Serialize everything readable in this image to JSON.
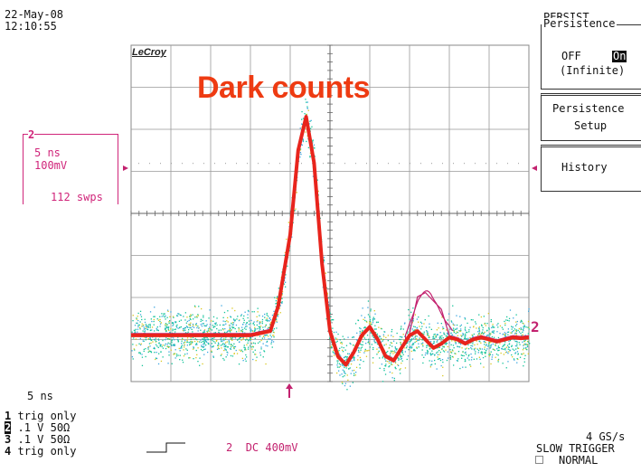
{
  "header": {
    "date": "22-May-08",
    "time": "12:10:55"
  },
  "menu": {
    "title": "PERSIST",
    "persistence": {
      "label": "Persistence",
      "off": "OFF",
      "on": "On",
      "mode": "(Infinite)",
      "selected": "On"
    },
    "setup": {
      "line1": "Persistence",
      "line2": "Setup"
    },
    "history": {
      "label": "History"
    }
  },
  "screen": {
    "overlay_title": "Dark counts",
    "brand": "LeCroy"
  },
  "channel2_box": {
    "num": "2",
    "tdiv": "5 ns",
    "vdiv": "100mV",
    "sweeps": "112 swps"
  },
  "footer": {
    "timebase": "5 ns",
    "channels": [
      {
        "num": "1",
        "text": "trig only"
      },
      {
        "num": "2",
        "text": ".1   V  50Ω"
      },
      {
        "num": "3",
        "text": ".1   V  50Ω"
      },
      {
        "num": "4",
        "text": "trig only"
      }
    ],
    "trigger_channel": "2",
    "trigger_coupling": "DC 400mV",
    "sample_rate": "4 GS/s",
    "trigger_mode": "SLOW TRIGGER",
    "trigger_state": "NORMAL"
  },
  "right_marker": "2",
  "colors": {
    "trace": "#e8241c",
    "persistence": "#12c49a",
    "channel2": "#c3226f",
    "title": "#ee3b12"
  },
  "chart_data": {
    "type": "line",
    "x_divisions": 10,
    "y_divisions": 8,
    "series": [
      {
        "x": [
          0,
          0.5,
          1,
          1.5,
          2,
          2.5,
          3,
          3.5,
          3.7,
          4,
          4.2,
          4.4,
          4.6,
          4.8,
          5,
          5.2,
          5.4,
          5.6,
          5.8,
          6,
          6.2,
          6.4,
          6.6,
          6.8,
          7,
          7.2,
          7.4,
          7.6,
          7.8,
          8,
          8.2,
          8.4,
          8.6,
          8.8,
          9,
          9.2,
          9.4,
          9.6,
          9.8,
          10
        ],
        "y": [
          -2.9,
          -2.9,
          -2.9,
          -2.9,
          -2.9,
          -2.9,
          -2.9,
          -2.8,
          -2.2,
          -0.5,
          1.5,
          2.3,
          1.2,
          -1.2,
          -2.8,
          -3.4,
          -3.6,
          -3.3,
          -2.9,
          -2.7,
          -3.0,
          -3.4,
          -3.5,
          -3.2,
          -2.9,
          -2.8,
          -3.0,
          -3.2,
          -3.1,
          -2.95,
          -3.0,
          -3.1,
          -3.0,
          -2.95,
          -3.0,
          -3.05,
          -3.0,
          -2.95,
          -2.97,
          -2.95
        ]
      }
    ]
  }
}
